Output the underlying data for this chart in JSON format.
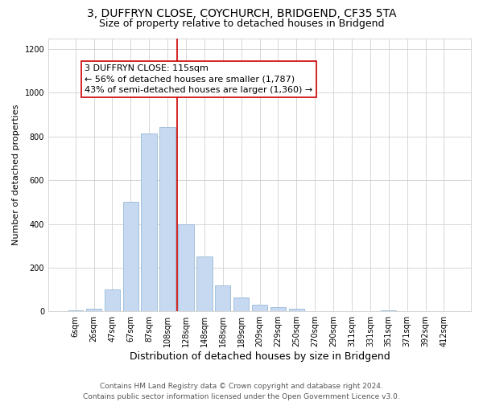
{
  "title1": "3, DUFFRYN CLOSE, COYCHURCH, BRIDGEND, CF35 5TA",
  "title2": "Size of property relative to detached houses in Bridgend",
  "xlabel": "Distribution of detached houses by size in Bridgend",
  "ylabel": "Number of detached properties",
  "bar_labels": [
    "6sqm",
    "26sqm",
    "47sqm",
    "67sqm",
    "87sqm",
    "108sqm",
    "128sqm",
    "148sqm",
    "168sqm",
    "189sqm",
    "209sqm",
    "229sqm",
    "250sqm",
    "270sqm",
    "290sqm",
    "311sqm",
    "331sqm",
    "351sqm",
    "371sqm",
    "392sqm",
    "412sqm"
  ],
  "bar_values": [
    5,
    10,
    100,
    500,
    815,
    845,
    400,
    250,
    120,
    65,
    30,
    20,
    10,
    0,
    0,
    0,
    0,
    5,
    0,
    0,
    0
  ],
  "bar_color": "#c6d9f0",
  "bar_edge_color": "#8ab0d0",
  "vline_x": 5.5,
  "vline_color": "#cc0000",
  "annotation_text": "3 DUFFRYN CLOSE: 115sqm\n← 56% of detached houses are smaller (1,787)\n43% of semi-detached houses are larger (1,360) →",
  "annotation_box_color": "#ffffff",
  "annotation_box_edge": "#cc0000",
  "ylim": [
    0,
    1250
  ],
  "yticks": [
    0,
    200,
    400,
    600,
    800,
    1000,
    1200
  ],
  "footer_text": "Contains HM Land Registry data © Crown copyright and database right 2024.\nContains public sector information licensed under the Open Government Licence v3.0.",
  "bg_color": "#ffffff",
  "grid_color": "#d0d0d0",
  "title1_fontsize": 10,
  "title2_fontsize": 9,
  "xlabel_fontsize": 9,
  "ylabel_fontsize": 8,
  "tick_fontsize": 7,
  "annotation_fontsize": 8,
  "footer_fontsize": 6.5
}
